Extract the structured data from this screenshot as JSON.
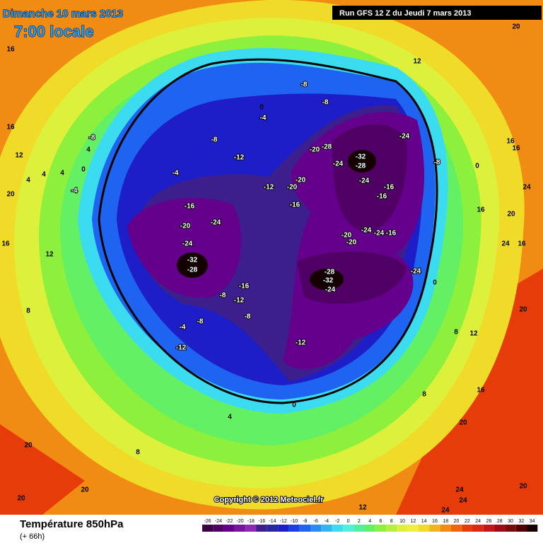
{
  "header": {
    "date": "Dimanche 10 mars 2013",
    "time": "7:00 locale",
    "run": "Run GFS 12 Z du Jeudi 7 mars 2013"
  },
  "footer": {
    "title": "Température 850hPa",
    "lead": "(+ 66h)",
    "copyright": "Copyright © 2012 Meteociel.fr"
  },
  "legend": {
    "ticks": [
      -26,
      -24,
      -22,
      -20,
      -18,
      -16,
      -14,
      -12,
      -10,
      -8,
      -6,
      -4,
      -2,
      0,
      2,
      4,
      6,
      8,
      10,
      12,
      14,
      16,
      18,
      20,
      22,
      24,
      26,
      28,
      30,
      32,
      34
    ],
    "colors": [
      "#3c0046",
      "#500064",
      "#64008c",
      "#7814a0",
      "#8c28b4",
      "#3c1e8c",
      "#2828a0",
      "#1e1ec8",
      "#1e3ce6",
      "#1e64f0",
      "#288cf0",
      "#32b4f0",
      "#3cdcf0",
      "#50f0dc",
      "#50f0a0",
      "#64f064",
      "#8cf03c",
      "#b4f03c",
      "#dcf03c",
      "#f0f03c",
      "#f0dc28",
      "#f0b41e",
      "#f08c14",
      "#f0640a",
      "#e63c0a",
      "#dc2814",
      "#c8141e",
      "#a00a14",
      "#780a0a",
      "#500000",
      "#140000"
    ]
  },
  "map": {
    "labels": [
      16,
      16,
      12,
      20,
      16,
      12,
      20,
      20,
      -8,
      4,
      4,
      0,
      -4,
      -4,
      -8,
      -12,
      -12,
      -8,
      -8,
      0,
      -4,
      -16,
      -20,
      -24,
      -24,
      -32,
      -28,
      -8,
      -16,
      -12,
      -8,
      -4,
      -12,
      -8,
      -20,
      -28,
      -32,
      -28,
      -24,
      -24,
      -24,
      -20,
      -20,
      -16,
      -16,
      -16,
      -20,
      -24,
      -20,
      -24,
      -16,
      -28,
      -32,
      -24,
      -24,
      -12,
      0,
      4,
      8,
      16,
      20,
      20,
      24,
      20,
      24,
      16,
      -8,
      0,
      16,
      20,
      20,
      20,
      8,
      24,
      20,
      24,
      24,
      12,
      8,
      12,
      0,
      8,
      12,
      4,
      4,
      16,
      16
    ]
  }
}
